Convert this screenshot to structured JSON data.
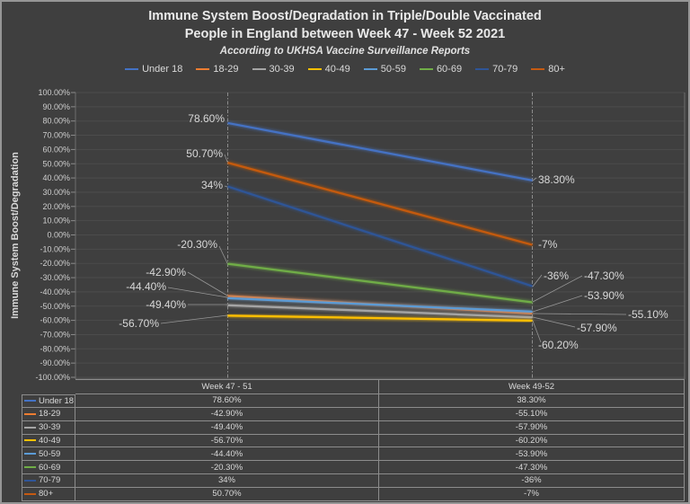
{
  "title": {
    "line1": "Immune System Boost/Degradation in Triple/Double Vaccinated",
    "line2": "People in England between Week 47 - Week 52 2021"
  },
  "subtitle": "According to UKHSA Vaccine Surveillance Reports",
  "chart_data": {
    "type": "line",
    "categories": [
      "Week 47 - 51",
      "Week 49-52"
    ],
    "ylabel": "Immune System Boost/Degradation",
    "ylim": [
      -100,
      100
    ],
    "ytick_step": 10,
    "ytick_format": "0.00%",
    "grid": true,
    "legend_position": "top",
    "category_marker": "vertical-dash-dot-line",
    "series": [
      {
        "name": "Under 18",
        "color": "#4472C4",
        "values": [
          78.6,
          38.3
        ],
        "labels": [
          "78.60%",
          "38.30%"
        ]
      },
      {
        "name": "18-29",
        "color": "#ED7D31",
        "values": [
          -42.9,
          -55.1
        ],
        "labels": [
          "-42.90%",
          "-55.10%"
        ]
      },
      {
        "name": "30-39",
        "color": "#A5A5A5",
        "values": [
          -49.4,
          -57.9
        ],
        "labels": [
          "-49.40%",
          "-57.90%"
        ]
      },
      {
        "name": "40-49",
        "color": "#FFC000",
        "values": [
          -56.7,
          -60.2
        ],
        "labels": [
          "-56.70%",
          "-60.20%"
        ]
      },
      {
        "name": "50-59",
        "color": "#5B9BD5",
        "values": [
          -44.4,
          -53.9
        ],
        "labels": [
          "-44.40%",
          "-53.90%"
        ]
      },
      {
        "name": "60-69",
        "color": "#70AD47",
        "values": [
          -20.3,
          -47.3
        ],
        "labels": [
          "-20.30%",
          "-47.30%"
        ]
      },
      {
        "name": "70-79",
        "color": "#2F5597",
        "values": [
          34,
          -36
        ],
        "labels": [
          "34%",
          "-36%"
        ]
      },
      {
        "name": "80+",
        "color": "#C55A11",
        "values": [
          50.7,
          -7
        ],
        "labels": [
          "50.70%",
          "-7%"
        ]
      }
    ]
  },
  "colors": {
    "background": "#3F3F3F",
    "border": "#969696",
    "text": "#D9D9D9",
    "gridline": "#4C4C4C",
    "table_border": "#8C8C8C",
    "leader_line": "#A6A6A6"
  }
}
